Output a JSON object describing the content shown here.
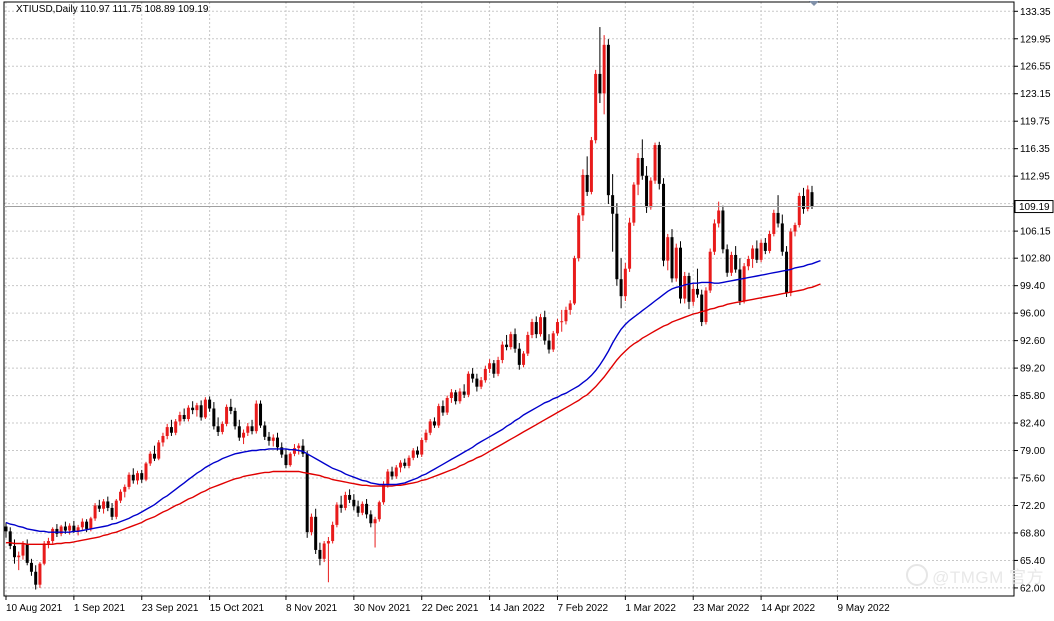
{
  "header": {
    "symbol": "XTIUSD,Daily",
    "ohlc": "110.97 111.75 108.89 109.19"
  },
  "current_price_label": "109.19",
  "watermark": {
    "text": "@TMGM 官方"
  },
  "colors": {
    "bull": "#e81b1b",
    "bear": "#000000",
    "ma_fast": "#0000cc",
    "ma_slow": "#e00000",
    "grid": "#c8c8c8",
    "price_line": "#a0a0a0"
  },
  "chart_data": {
    "type": "candlestick",
    "y_ticks": [
      "133.35",
      "129.95",
      "126.55",
      "123.15",
      "119.75",
      "116.35",
      "112.95",
      "109.55",
      "106.15",
      "102.80",
      "99.40",
      "96.00",
      "92.60",
      "89.20",
      "85.80",
      "82.40",
      "79.00",
      "75.60",
      "72.20",
      "68.80",
      "65.40",
      "62.00"
    ],
    "ylim": [
      61.0,
      134.5
    ],
    "x_tick_labels": [
      "10 Aug 2021",
      "1 Sep 2021",
      "23 Sep 2021",
      "15 Oct 2021",
      "8 Nov 2021",
      "30 Nov 2021",
      "22 Dec 2021",
      "14 Jan 2022",
      "7 Feb 2022",
      "1 Mar 2022",
      "23 Mar 2022",
      "14 Apr 2022",
      "9 May 2022"
    ],
    "x_tick_bar_index": [
      0,
      16,
      32,
      48,
      66,
      82,
      98,
      114,
      130,
      146,
      162,
      178,
      196
    ],
    "grid": true,
    "current_price": 109.19,
    "candles_ohlc": [
      [
        69.6,
        70.1,
        68.2,
        69.0
      ],
      [
        69.0,
        69.5,
        66.8,
        67.2
      ],
      [
        67.2,
        68.0,
        65.0,
        65.8
      ],
      [
        65.8,
        66.5,
        64.2,
        66.0
      ],
      [
        66.0,
        67.8,
        65.5,
        67.4
      ],
      [
        67.4,
        68.0,
        64.8,
        65.1
      ],
      [
        65.1,
        65.6,
        63.5,
        64.0
      ],
      [
        64.0,
        64.8,
        61.8,
        62.4
      ],
      [
        62.4,
        65.2,
        62.0,
        65.0
      ],
      [
        65.0,
        67.8,
        64.8,
        67.5
      ],
      [
        67.5,
        68.2,
        66.9,
        67.8
      ],
      [
        67.8,
        69.5,
        67.5,
        69.3
      ],
      [
        69.3,
        69.9,
        68.3,
        68.7
      ],
      [
        68.7,
        69.8,
        68.4,
        69.6
      ],
      [
        69.6,
        70.2,
        68.7,
        69.1
      ],
      [
        69.1,
        70.0,
        68.6,
        69.7
      ],
      [
        69.7,
        70.3,
        68.8,
        69.0
      ],
      [
        69.0,
        69.8,
        68.5,
        69.5
      ],
      [
        69.5,
        70.6,
        69.2,
        70.2
      ],
      [
        70.2,
        70.5,
        68.9,
        69.3
      ],
      [
        69.3,
        70.8,
        69.0,
        70.6
      ],
      [
        70.6,
        72.5,
        70.3,
        72.2
      ],
      [
        72.2,
        72.9,
        71.4,
        71.8
      ],
      [
        71.8,
        73.0,
        71.2,
        72.7
      ],
      [
        72.7,
        73.3,
        71.5,
        71.9
      ],
      [
        71.9,
        72.5,
        70.4,
        70.8
      ],
      [
        70.8,
        73.0,
        70.5,
        72.8
      ],
      [
        72.8,
        74.2,
        72.5,
        73.9
      ],
      [
        73.9,
        74.8,
        73.2,
        74.5
      ],
      [
        74.5,
        76.3,
        74.2,
        76.0
      ],
      [
        76.0,
        76.8,
        74.9,
        75.3
      ],
      [
        75.3,
        76.5,
        74.8,
        76.2
      ],
      [
        76.2,
        76.6,
        75.0,
        75.4
      ],
      [
        75.4,
        77.6,
        75.2,
        77.4
      ],
      [
        77.4,
        78.9,
        77.1,
        78.6
      ],
      [
        78.6,
        79.6,
        77.7,
        78.0
      ],
      [
        78.0,
        80.3,
        77.8,
        80.0
      ],
      [
        80.0,
        81.2,
        79.5,
        80.8
      ],
      [
        80.8,
        82.3,
        80.4,
        81.9
      ],
      [
        81.9,
        82.8,
        80.8,
        81.2
      ],
      [
        81.2,
        82.9,
        80.9,
        82.6
      ],
      [
        82.6,
        83.8,
        82.1,
        83.4
      ],
      [
        83.4,
        84.2,
        82.6,
        82.9
      ],
      [
        82.9,
        84.6,
        82.6,
        84.3
      ],
      [
        84.3,
        85.1,
        83.5,
        84.0
      ],
      [
        84.0,
        84.9,
        83.2,
        84.6
      ],
      [
        84.6,
        85.2,
        82.7,
        83.1
      ],
      [
        83.1,
        85.6,
        82.9,
        85.3
      ],
      [
        85.3,
        85.7,
        83.8,
        84.2
      ],
      [
        84.2,
        85.0,
        81.6,
        82.0
      ],
      [
        82.0,
        83.1,
        80.8,
        81.3
      ],
      [
        81.3,
        82.6,
        81.0,
        82.3
      ],
      [
        82.3,
        84.7,
        82.0,
        84.4
      ],
      [
        84.4,
        85.4,
        83.5,
        83.9
      ],
      [
        83.9,
        84.3,
        81.6,
        82.0
      ],
      [
        82.0,
        82.8,
        80.2,
        80.6
      ],
      [
        80.6,
        81.6,
        79.8,
        81.2
      ],
      [
        81.2,
        82.4,
        80.8,
        82.0
      ],
      [
        82.0,
        82.8,
        81.0,
        81.4
      ],
      [
        81.4,
        85.2,
        81.1,
        84.8
      ],
      [
        84.8,
        85.2,
        81.8,
        82.1
      ],
      [
        82.1,
        82.6,
        80.3,
        80.7
      ],
      [
        80.7,
        81.3,
        79.6,
        80.2
      ],
      [
        80.2,
        81.0,
        79.5,
        80.6
      ],
      [
        80.6,
        81.2,
        79.0,
        79.4
      ],
      [
        79.4,
        80.0,
        78.1,
        78.5
      ],
      [
        78.5,
        79.2,
        76.8,
        77.2
      ],
      [
        77.2,
        78.8,
        77.0,
        78.6
      ],
      [
        78.6,
        79.8,
        78.3,
        79.3
      ],
      [
        79.3,
        79.9,
        78.5,
        79.6
      ],
      [
        79.6,
        80.4,
        78.2,
        78.6
      ],
      [
        78.6,
        79.0,
        68.2,
        68.9
      ],
      [
        68.9,
        71.2,
        68.5,
        70.8
      ],
      [
        70.8,
        71.8,
        66.2,
        66.7
      ],
      [
        66.7,
        67.6,
        64.8,
        65.6
      ],
      [
        65.6,
        67.8,
        65.2,
        67.5
      ],
      [
        67.5,
        68.3,
        62.7,
        67.8
      ],
      [
        67.8,
        70.2,
        67.5,
        69.8
      ],
      [
        69.8,
        72.6,
        69.5,
        72.3
      ],
      [
        72.3,
        73.4,
        71.3,
        71.9
      ],
      [
        71.9,
        73.9,
        71.6,
        73.5
      ],
      [
        73.5,
        74.2,
        72.5,
        72.9
      ],
      [
        72.9,
        73.6,
        71.6,
        72.1
      ],
      [
        72.1,
        72.8,
        70.8,
        71.3
      ],
      [
        71.3,
        72.7,
        71.0,
        72.4
      ],
      [
        72.4,
        73.0,
        70.6,
        71.1
      ],
      [
        71.1,
        71.6,
        69.5,
        70.0
      ],
      [
        70.0,
        70.8,
        67.0,
        70.5
      ],
      [
        70.5,
        72.8,
        70.2,
        72.6
      ],
      [
        72.6,
        75.2,
        72.3,
        74.8
      ],
      [
        74.8,
        76.7,
        74.4,
        76.4
      ],
      [
        76.4,
        77.0,
        75.4,
        75.8
      ],
      [
        75.8,
        77.2,
        75.5,
        76.9
      ],
      [
        76.9,
        77.8,
        76.3,
        77.5
      ],
      [
        77.5,
        78.0,
        76.8,
        77.1
      ],
      [
        77.1,
        78.4,
        76.8,
        78.1
      ],
      [
        78.1,
        79.3,
        77.8,
        79.0
      ],
      [
        79.0,
        79.5,
        78.1,
        78.5
      ],
      [
        78.5,
        80.6,
        78.2,
        80.3
      ],
      [
        80.3,
        81.6,
        80.0,
        81.2
      ],
      [
        81.2,
        82.9,
        80.9,
        82.6
      ],
      [
        82.6,
        83.1,
        81.8,
        82.1
      ],
      [
        82.1,
        84.8,
        81.8,
        84.5
      ],
      [
        84.5,
        85.2,
        83.3,
        83.7
      ],
      [
        83.7,
        85.8,
        83.4,
        85.5
      ],
      [
        85.5,
        86.6,
        84.9,
        86.2
      ],
      [
        86.2,
        86.5,
        84.7,
        85.1
      ],
      [
        85.1,
        86.7,
        84.8,
        86.3
      ],
      [
        86.3,
        87.2,
        85.5,
        85.9
      ],
      [
        85.9,
        88.8,
        85.6,
        88.5
      ],
      [
        88.5,
        89.2,
        87.4,
        87.9
      ],
      [
        87.9,
        88.5,
        86.3,
        86.9
      ],
      [
        86.9,
        88.1,
        86.6,
        87.7
      ],
      [
        87.7,
        89.5,
        87.4,
        89.1
      ],
      [
        89.1,
        90.3,
        88.6,
        89.8
      ],
      [
        89.8,
        90.2,
        88.0,
        88.5
      ],
      [
        88.5,
        90.6,
        88.2,
        90.2
      ],
      [
        90.2,
        92.5,
        89.8,
        92.1
      ],
      [
        92.1,
        93.3,
        91.4,
        91.8
      ],
      [
        91.8,
        93.7,
        91.5,
        93.4
      ],
      [
        93.4,
        94.1,
        91.1,
        91.6
      ],
      [
        91.6,
        92.3,
        89.0,
        89.6
      ],
      [
        89.6,
        91.3,
        89.3,
        91.0
      ],
      [
        91.0,
        93.7,
        90.7,
        93.3
      ],
      [
        93.3,
        95.3,
        92.9,
        94.9
      ],
      [
        94.9,
        95.6,
        92.9,
        93.4
      ],
      [
        93.4,
        95.9,
        93.1,
        95.5
      ],
      [
        95.5,
        96.3,
        92.1,
        92.6
      ],
      [
        92.6,
        93.4,
        91.0,
        91.5
      ],
      [
        91.5,
        93.8,
        91.2,
        93.5
      ],
      [
        93.5,
        95.3,
        93.2,
        94.9
      ],
      [
        94.9,
        96.4,
        93.7,
        95.0
      ],
      [
        95.0,
        96.8,
        94.6,
        96.4
      ],
      [
        96.4,
        97.6,
        95.8,
        97.2
      ],
      [
        97.2,
        103.1,
        97.0,
        102.8
      ],
      [
        102.8,
        108.4,
        102.4,
        108.1
      ],
      [
        108.1,
        113.8,
        107.4,
        113.1
      ],
      [
        113.1,
        115.4,
        110.5,
        111.0
      ],
      [
        111.0,
        117.8,
        110.7,
        117.4
      ],
      [
        117.4,
        126.1,
        117.0,
        125.6
      ],
      [
        125.6,
        131.4,
        122.0,
        123.2
      ],
      [
        123.2,
        130.4,
        120.6,
        129.2
      ],
      [
        129.2,
        129.9,
        109.5,
        110.6
      ],
      [
        110.6,
        113.2,
        103.6,
        108.3
      ],
      [
        108.3,
        109.6,
        99.4,
        100.2
      ],
      [
        100.2,
        102.8,
        96.6,
        98.1
      ],
      [
        98.1,
        102.2,
        97.5,
        101.5
      ],
      [
        101.5,
        107.8,
        101.1,
        107.2
      ],
      [
        107.2,
        112.2,
        106.8,
        111.9
      ],
      [
        111.9,
        115.8,
        110.6,
        115.2
      ],
      [
        115.2,
        117.5,
        112.5,
        113.0
      ],
      [
        113.0,
        114.2,
        108.4,
        109.1
      ],
      [
        109.1,
        112.8,
        108.8,
        112.4
      ],
      [
        112.4,
        117.1,
        112.0,
        116.8
      ],
      [
        116.8,
        117.2,
        111.3,
        112.0
      ],
      [
        112.0,
        112.7,
        101.8,
        102.5
      ],
      [
        102.5,
        105.8,
        101.3,
        105.4
      ],
      [
        105.4,
        106.4,
        99.8,
        100.3
      ],
      [
        100.3,
        104.6,
        99.9,
        104.1
      ],
      [
        104.1,
        104.9,
        97.2,
        97.8
      ],
      [
        97.8,
        101.1,
        97.2,
        100.6
      ],
      [
        100.6,
        101.0,
        96.5,
        97.4
      ],
      [
        97.4,
        99.6,
        96.9,
        99.0
      ],
      [
        99.0,
        101.5,
        97.9,
        98.3
      ],
      [
        98.3,
        98.9,
        94.4,
        94.9
      ],
      [
        94.9,
        99.2,
        94.6,
        98.8
      ],
      [
        98.8,
        104.0,
        98.5,
        103.6
      ],
      [
        103.6,
        107.6,
        103.2,
        107.1
      ],
      [
        107.1,
        109.8,
        106.6,
        108.7
      ],
      [
        108.7,
        109.3,
        103.4,
        103.9
      ],
      [
        103.9,
        104.5,
        100.5,
        101.0
      ],
      [
        101.0,
        103.6,
        100.6,
        103.2
      ],
      [
        103.2,
        104.3,
        101.0,
        101.4
      ],
      [
        101.4,
        102.8,
        97.0,
        97.5
      ],
      [
        97.5,
        102.2,
        97.2,
        101.8
      ],
      [
        101.8,
        103.1,
        101.3,
        102.7
      ],
      [
        102.7,
        104.4,
        101.6,
        104.0
      ],
      [
        104.0,
        105.0,
        102.2,
        102.6
      ],
      [
        102.6,
        105.1,
        102.3,
        104.7
      ],
      [
        104.7,
        105.3,
        103.3,
        103.7
      ],
      [
        103.7,
        106.2,
        103.4,
        105.8
      ],
      [
        105.8,
        108.8,
        105.5,
        108.4
      ],
      [
        108.4,
        110.6,
        106.6,
        107.1
      ],
      [
        107.1,
        108.2,
        103.1,
        103.6
      ],
      [
        103.6,
        104.3,
        98.0,
        98.5
      ],
      [
        98.5,
        106.5,
        98.1,
        106.1
      ],
      [
        106.1,
        107.2,
        105.5,
        106.9
      ],
      [
        106.9,
        110.9,
        106.6,
        110.5
      ],
      [
        110.5,
        111.5,
        108.3,
        108.9
      ],
      [
        108.9,
        111.8,
        108.6,
        111.3
      ],
      [
        110.97,
        111.75,
        108.89,
        109.19
      ]
    ],
    "ma_fast": [
      70.1,
      69.9,
      69.8,
      69.6,
      69.5,
      69.3,
      69.2,
      69.1,
      69.0,
      69.0,
      68.9,
      68.9,
      68.9,
      68.9,
      68.9,
      68.9,
      69.0,
      69.0,
      69.1,
      69.2,
      69.3,
      69.4,
      69.5,
      69.6,
      69.7,
      69.9,
      70.0,
      70.2,
      70.4,
      70.6,
      70.9,
      71.1,
      71.4,
      71.7,
      72.0,
      72.3,
      72.7,
      73.1,
      73.4,
      73.8,
      74.2,
      74.6,
      75.0,
      75.4,
      75.8,
      76.2,
      76.5,
      76.9,
      77.2,
      77.5,
      77.7,
      78.0,
      78.2,
      78.4,
      78.6,
      78.7,
      78.8,
      78.9,
      79.0,
      79.0,
      79.1,
      79.1,
      79.2,
      79.2,
      79.2,
      79.2,
      79.2,
      79.1,
      79.1,
      79.0,
      78.9,
      78.6,
      78.3,
      78.0,
      77.7,
      77.4,
      77.1,
      76.8,
      76.6,
      76.4,
      76.1,
      75.9,
      75.7,
      75.5,
      75.3,
      75.2,
      75.0,
      74.9,
      74.8,
      74.8,
      74.8,
      74.8,
      74.8,
      74.9,
      75.0,
      75.2,
      75.4,
      75.6,
      75.9,
      76.1,
      76.4,
      76.7,
      77.0,
      77.3,
      77.6,
      77.9,
      78.2,
      78.5,
      78.8,
      79.1,
      79.4,
      79.8,
      80.1,
      80.4,
      80.7,
      81.0,
      81.3,
      81.6,
      82.0,
      82.3,
      82.7,
      83.0,
      83.4,
      83.7,
      84.0,
      84.3,
      84.6,
      84.9,
      85.1,
      85.4,
      85.6,
      85.9,
      86.1,
      86.4,
      86.7,
      87.0,
      87.4,
      87.8,
      88.3,
      88.9,
      89.6,
      90.4,
      91.3,
      92.3,
      93.2,
      94.0,
      94.6,
      95.1,
      95.5,
      95.9,
      96.3,
      96.7,
      97.1,
      97.5,
      97.9,
      98.3,
      98.7,
      99.0,
      99.2,
      99.3,
      99.5,
      99.6,
      99.7,
      99.7,
      99.8,
      99.8,
      99.8,
      99.7,
      99.7,
      99.8,
      99.9,
      100.0,
      100.1,
      100.2,
      100.3,
      100.4,
      100.5,
      100.6,
      100.7,
      100.8,
      100.9,
      101.0,
      101.1,
      101.2,
      101.3,
      101.4,
      101.6,
      101.7,
      101.8,
      102.0,
      102.1,
      102.3,
      102.5
    ],
    "ma_slow": [
      67.6,
      67.6,
      67.5,
      67.5,
      67.5,
      67.4,
      67.4,
      67.4,
      67.4,
      67.4,
      67.4,
      67.4,
      67.5,
      67.5,
      67.6,
      67.6,
      67.7,
      67.8,
      67.9,
      68.0,
      68.1,
      68.2,
      68.3,
      68.5,
      68.6,
      68.8,
      68.9,
      69.1,
      69.3,
      69.5,
      69.7,
      69.9,
      70.1,
      70.4,
      70.6,
      70.8,
      71.1,
      71.4,
      71.6,
      71.9,
      72.2,
      72.4,
      72.7,
      73.0,
      73.2,
      73.5,
      73.8,
      74.0,
      74.3,
      74.5,
      74.7,
      74.9,
      75.1,
      75.3,
      75.5,
      75.6,
      75.8,
      75.9,
      76.0,
      76.1,
      76.2,
      76.3,
      76.3,
      76.4,
      76.4,
      76.4,
      76.4,
      76.4,
      76.4,
      76.4,
      76.3,
      76.2,
      76.1,
      76.0,
      75.9,
      75.7,
      75.6,
      75.4,
      75.3,
      75.2,
      75.1,
      75.0,
      74.9,
      74.8,
      74.7,
      74.7,
      74.6,
      74.6,
      74.6,
      74.6,
      74.6,
      74.6,
      74.7,
      74.7,
      74.8,
      74.9,
      75.0,
      75.1,
      75.3,
      75.4,
      75.6,
      75.8,
      76.0,
      76.2,
      76.4,
      76.6,
      76.8,
      77.1,
      77.3,
      77.6,
      77.8,
      78.1,
      78.3,
      78.6,
      78.9,
      79.2,
      79.5,
      79.8,
      80.1,
      80.4,
      80.7,
      81.0,
      81.3,
      81.6,
      81.9,
      82.2,
      82.5,
      82.8,
      83.1,
      83.4,
      83.7,
      84.0,
      84.3,
      84.6,
      84.9,
      85.2,
      85.6,
      85.9,
      86.4,
      86.9,
      87.5,
      88.1,
      88.8,
      89.5,
      90.2,
      90.8,
      91.3,
      91.8,
      92.2,
      92.5,
      92.9,
      93.2,
      93.5,
      93.8,
      94.1,
      94.4,
      94.6,
      94.9,
      95.1,
      95.3,
      95.5,
      95.7,
      95.9,
      96.0,
      96.2,
      96.3,
      96.5,
      96.6,
      96.8,
      96.9,
      97.1,
      97.2,
      97.3,
      97.4,
      97.5,
      97.6,
      97.7,
      97.8,
      97.9,
      98.0,
      98.1,
      98.2,
      98.3,
      98.4,
      98.5,
      98.6,
      98.7,
      98.8,
      98.9,
      99.1,
      99.2,
      99.4,
      99.6
    ]
  }
}
